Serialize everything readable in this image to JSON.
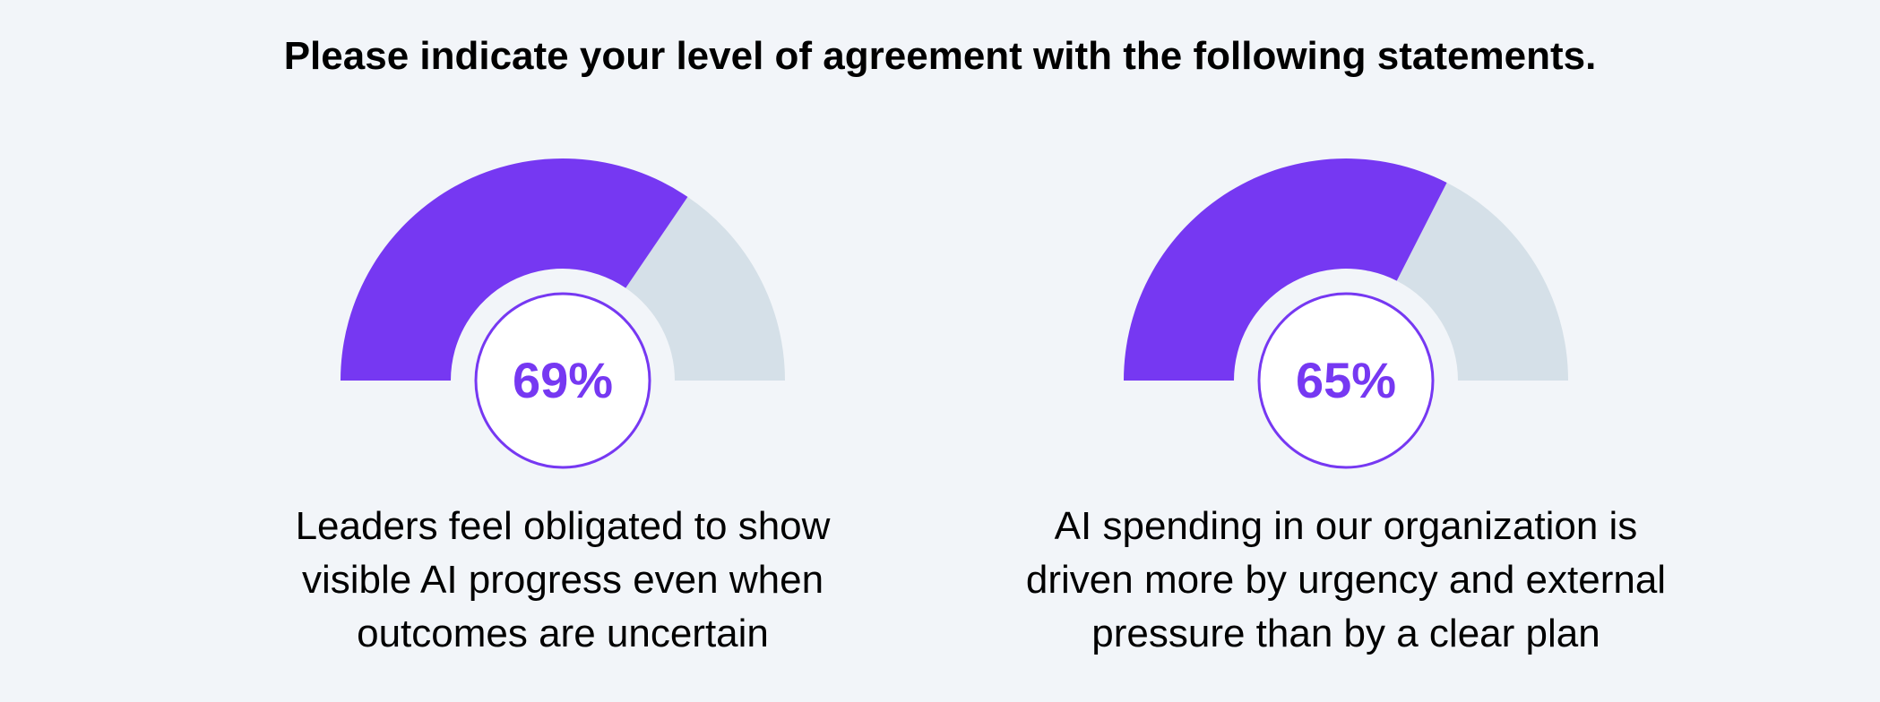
{
  "title": "Please indicate your level of agreement with the following statements.",
  "colors": {
    "fill": "#7638f2",
    "track": "#d5e0e8",
    "circle_stroke": "#7638f2",
    "circle_fill": "#ffffff",
    "label": "#7638f2"
  },
  "chart_data": [
    {
      "type": "gauge",
      "value": 69,
      "max": 100,
      "label": "69%",
      "caption_lines": [
        "Leaders feel obligated to show",
        "visible AI progress even when",
        "outcomes are uncertain"
      ]
    },
    {
      "type": "gauge",
      "value": 65,
      "max": 100,
      "label": "65%",
      "caption_lines": [
        "AI spending in our organization is",
        "driven more by urgency and external",
        "pressure than by a clear plan"
      ]
    }
  ]
}
